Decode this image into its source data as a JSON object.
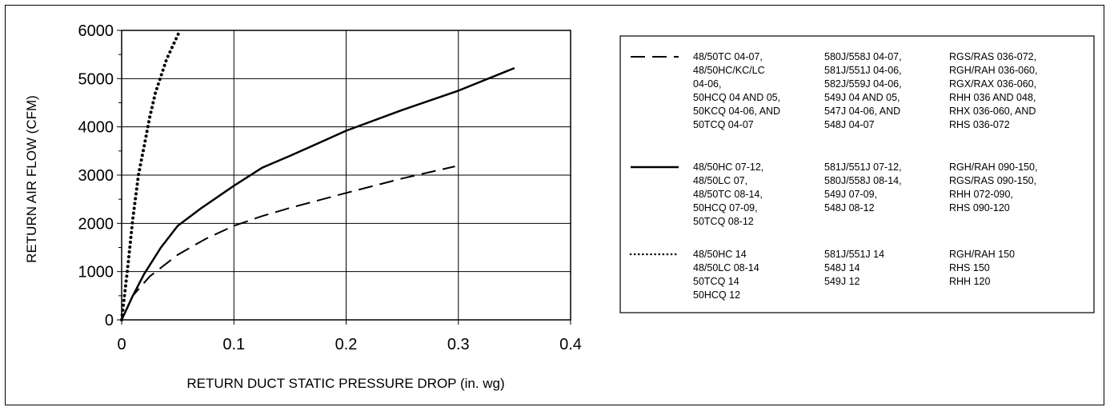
{
  "chart_data": {
    "type": "line",
    "title": "",
    "xlabel": "RETURN DUCT STATIC PRESSURE DROP (in. wg)",
    "ylabel": "RETURN AIR FLOW (CFM)",
    "xlim": [
      0,
      0.4
    ],
    "ylim": [
      0,
      6000
    ],
    "x_ticks": [
      "0",
      "0.1",
      "0.2",
      "0.3",
      "0.4"
    ],
    "y_ticks": [
      "0",
      "1000",
      "2000",
      "3000",
      "4000",
      "5000",
      "6000"
    ],
    "grid": true,
    "legend_position": "right",
    "series": [
      {
        "style": "dashed",
        "color": "#000000",
        "points": [
          [
            0,
            0
          ],
          [
            0.01,
            500
          ],
          [
            0.025,
            900
          ],
          [
            0.05,
            1350
          ],
          [
            0.075,
            1680
          ],
          [
            0.1,
            1950
          ],
          [
            0.125,
            2150
          ],
          [
            0.15,
            2320
          ],
          [
            0.2,
            2630
          ],
          [
            0.25,
            2930
          ],
          [
            0.297,
            3180
          ]
        ],
        "legend_columns": [
          [
            "48/50TC 04-07,",
            "48/50HC/KC/LC",
            "04-06,",
            "50HCQ 04 AND 05,",
            "50KCQ 04-06, AND",
            "50TCQ 04-07"
          ],
          [
            "580J/558J 04-07,",
            "581J/551J 04-06,",
            "582J/559J 04-06,",
            "549J 04 AND 05,",
            "547J 04-06, AND",
            "548J 04-07"
          ],
          [
            "RGS/RAS 036-072,",
            "RGH/RAH 036-060,",
            "RGX/RAX 036-060,",
            "RHH 036 AND 048,",
            "RHX 036-060, AND",
            "RHS 036-072"
          ]
        ]
      },
      {
        "style": "solid",
        "color": "#000000",
        "points": [
          [
            0,
            0
          ],
          [
            0.01,
            500
          ],
          [
            0.02,
            950
          ],
          [
            0.035,
            1500
          ],
          [
            0.05,
            1950
          ],
          [
            0.07,
            2300
          ],
          [
            0.1,
            2780
          ],
          [
            0.125,
            3150
          ],
          [
            0.15,
            3400
          ],
          [
            0.2,
            3920
          ],
          [
            0.25,
            4350
          ],
          [
            0.3,
            4750
          ],
          [
            0.35,
            5220
          ]
        ],
        "legend_columns": [
          [
            "48/50HC 07-12,",
            "48/50LC 07,",
            "48/50TC 08-14,",
            "50HCQ 07-09,",
            "50TCQ 08-12"
          ],
          [
            "581J/551J 07-12,",
            "580J/558J 08-14,",
            "549J 07-09,",
            "548J 08-12"
          ],
          [
            "RGH/RAH 090-150,",
            "RGS/RAS 090-150,",
            "RHH 072-090,",
            "RHS 090-120"
          ]
        ]
      },
      {
        "style": "dotted",
        "color": "#000000",
        "points": [
          [
            0,
            0
          ],
          [
            0.005,
            1000
          ],
          [
            0.01,
            2100
          ],
          [
            0.015,
            3000
          ],
          [
            0.02,
            3600
          ],
          [
            0.025,
            4200
          ],
          [
            0.03,
            4700
          ],
          [
            0.04,
            5400
          ],
          [
            0.052,
            6000
          ]
        ],
        "legend_columns": [
          [
            "48/50HC 14",
            "48/50LC 08-14",
            "50TCQ 14",
            "50HCQ 12"
          ],
          [
            "581J/551J 14",
            "548J 14",
            "549J 12"
          ],
          [
            "RGH/RAH 150",
            "RHS 150",
            "RHH 120"
          ]
        ]
      }
    ]
  }
}
